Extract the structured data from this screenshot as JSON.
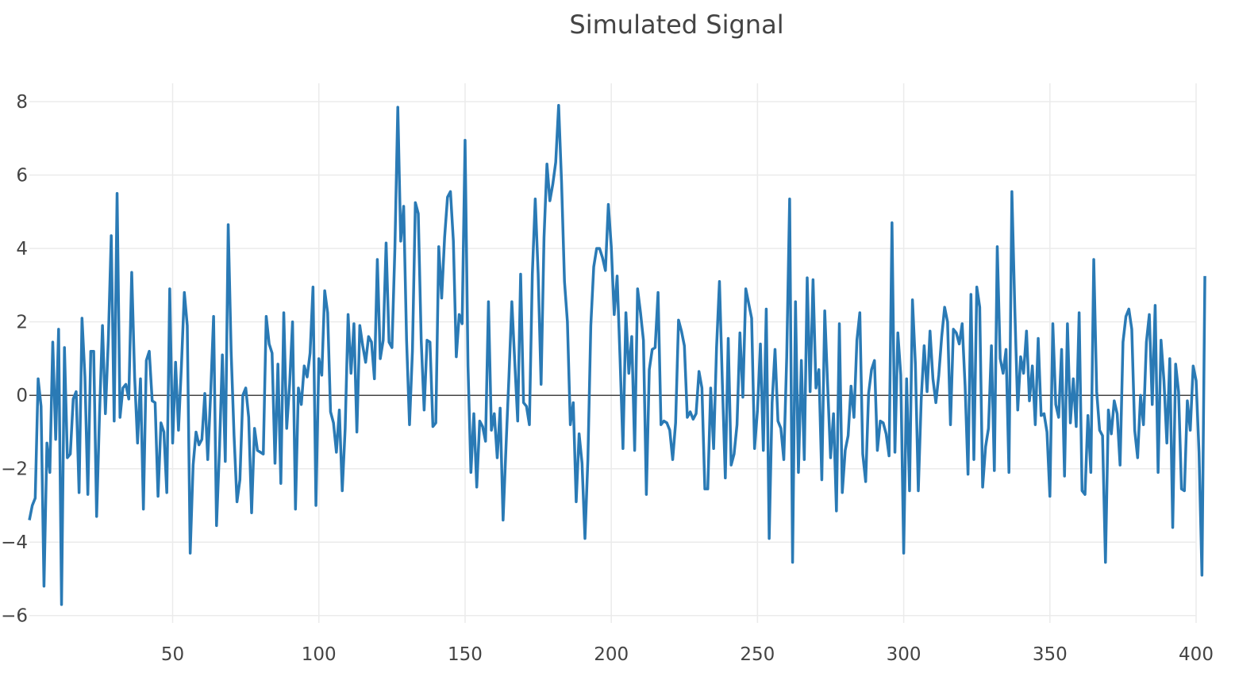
{
  "chart_data": {
    "type": "line",
    "title": "Simulated Signal",
    "xlabel": "",
    "ylabel": "",
    "xlim": [
      1,
      400
    ],
    "ylim": [
      -6.2,
      8.5
    ],
    "x_ticks": [
      50,
      100,
      150,
      200,
      250,
      300,
      350,
      400
    ],
    "y_ticks": [
      -6,
      -4,
      -2,
      0,
      2,
      4,
      6,
      8
    ],
    "y_tick_labels": [
      "−6",
      "−4",
      "−2",
      "0",
      "2",
      "4",
      "6",
      "8"
    ],
    "grid": true,
    "zero_line": true,
    "line_color": "#2a7ab5",
    "series": [
      {
        "x_start": 1,
        "x_step": 1,
        "values": [
          -3.4,
          -3.0,
          -2.8,
          0.45,
          -0.3,
          -5.2,
          -1.3,
          -2.1,
          1.45,
          -1.2,
          1.8,
          -5.7,
          1.3,
          -1.7,
          -1.6,
          -0.1,
          0.1,
          -2.65,
          2.1,
          0.5,
          -2.7,
          1.2,
          1.2,
          -3.3,
          -0.5,
          1.9,
          -0.5,
          1.5,
          4.35,
          -0.7,
          5.5,
          -0.6,
          0.2,
          0.3,
          -0.1,
          3.35,
          0.5,
          -1.3,
          0.45,
          -3.1,
          0.95,
          1.2,
          -0.15,
          -0.2,
          -2.75,
          -0.75,
          -1.0,
          -2.65,
          2.9,
          -1.3,
          0.9,
          -0.95,
          0.8,
          2.8,
          1.9,
          -4.3,
          -1.9,
          -1.0,
          -1.35,
          -1.2,
          0.05,
          -1.75,
          0.05,
          2.15,
          -3.55,
          -1.5,
          1.1,
          -1.8,
          4.65,
          1.2,
          -1.1,
          -2.9,
          -2.3,
          0.0,
          0.2,
          -0.6,
          -3.2,
          -0.9,
          -1.5,
          -1.55,
          -1.6,
          2.15,
          1.4,
          1.15,
          -1.85,
          0.85,
          -2.4,
          2.25,
          -0.9,
          0.3,
          2.0,
          -3.1,
          0.2,
          -0.25,
          0.8,
          0.5,
          1.15,
          2.95,
          -3.0,
          1.0,
          0.55,
          2.85,
          2.25,
          -0.45,
          -0.75,
          -1.55,
          -0.4,
          -2.6,
          -0.9,
          2.2,
          0.6,
          1.95,
          -1.0,
          1.9,
          1.35,
          0.9,
          1.6,
          1.45,
          0.45,
          3.7,
          1.0,
          1.5,
          4.15,
          1.45,
          1.3,
          4.0,
          7.85,
          4.2,
          5.15,
          1.5,
          -0.8,
          1.2,
          5.25,
          4.95,
          1.5,
          -0.4,
          1.5,
          1.45,
          -0.85,
          -0.75,
          4.05,
          2.65,
          4.3,
          5.4,
          5.55,
          4.2,
          1.05,
          2.2,
          1.95,
          6.95,
          0.8,
          -2.1,
          -0.5,
          -2.5,
          -0.7,
          -0.85,
          -1.25,
          2.55,
          -0.95,
          -0.5,
          -1.7,
          -0.35,
          -3.4,
          -1.4,
          0.5,
          2.55,
          0.9,
          -0.7,
          3.3,
          -0.2,
          -0.3,
          -0.8,
          3.3,
          5.35,
          3.3,
          0.3,
          4.3,
          6.3,
          5.3,
          5.75,
          6.35,
          7.9,
          5.8,
          3.1,
          2.0,
          -0.8,
          -0.2,
          -2.9,
          -1.05,
          -1.85,
          -3.9,
          -1.75,
          1.9,
          3.5,
          4.0,
          4.0,
          3.75,
          3.4,
          5.2,
          4.05,
          2.2,
          3.25,
          1.0,
          -1.45,
          2.25,
          0.6,
          1.6,
          -1.5,
          2.9,
          2.25,
          1.5,
          -2.7,
          0.7,
          1.25,
          1.3,
          2.8,
          -0.8,
          -0.7,
          -0.75,
          -0.95,
          -1.75,
          -0.75,
          2.05,
          1.75,
          1.35,
          -0.6,
          -0.45,
          -0.65,
          -0.5,
          0.65,
          0.2,
          -2.55,
          -2.55,
          0.2,
          -1.45,
          1.3,
          3.1,
          0.3,
          -2.25,
          1.55,
          -1.9,
          -1.6,
          -0.8,
          1.7,
          -0.05,
          2.9,
          2.5,
          2.1,
          -1.45,
          -0.4,
          1.4,
          -1.5,
          2.35,
          -3.9,
          -0.2,
          1.25,
          -0.7,
          -0.9,
          -1.75,
          1.05,
          5.35,
          -4.55,
          2.55,
          -2.1,
          0.95,
          -1.75,
          3.2,
          0.1,
          3.15,
          0.2,
          0.7,
          -2.3,
          2.3,
          0.25,
          -1.7,
          -0.5,
          -3.15,
          1.95,
          -2.65,
          -1.5,
          -1.1,
          0.25,
          -0.6,
          1.5,
          2.25,
          -1.6,
          -2.35,
          0.05,
          0.7,
          0.95,
          -1.5,
          -0.7,
          -0.75,
          -1.05,
          -1.65,
          4.7,
          -1.55,
          1.7,
          0.55,
          -4.3,
          0.45,
          -2.6,
          2.6,
          0.85,
          -2.6,
          -0.1,
          1.35,
          0.1,
          1.75,
          0.45,
          -0.2,
          0.55,
          1.6,
          2.4,
          2.0,
          -0.8,
          1.8,
          1.7,
          1.4,
          1.95,
          0.25,
          -2.15,
          2.75,
          -1.75,
          2.95,
          2.4,
          -2.5,
          -1.4,
          -0.9,
          1.35,
          -2.05,
          4.05,
          1.0,
          0.6,
          1.25,
          -2.1,
          5.55,
          2.35,
          -0.4,
          1.05,
          0.6,
          1.75,
          -0.15,
          0.8,
          -0.8,
          1.55,
          -0.55,
          -0.5,
          -1.0,
          -2.75,
          1.95,
          -0.25,
          -0.6,
          1.25,
          -2.2,
          1.95,
          -0.75,
          0.45,
          -0.85,
          2.25,
          -2.6,
          -2.7,
          -0.55,
          -2.1,
          3.7,
          0.1,
          -0.95,
          -1.1,
          -4.55,
          -0.4,
          -1.05,
          -0.15,
          -0.5,
          -1.9,
          1.45,
          2.15,
          2.35,
          1.8,
          -0.95,
          -1.7,
          0.0,
          -0.8,
          1.45,
          2.2,
          -0.25,
          2.45,
          -2.1,
          1.5,
          0.4,
          -1.3,
          1.0,
          -3.6,
          0.85,
          0.1,
          -2.55,
          -2.6,
          -0.15,
          -0.95,
          0.8,
          0.4,
          -1.55,
          -4.9,
          3.25
        ]
      }
    ]
  }
}
